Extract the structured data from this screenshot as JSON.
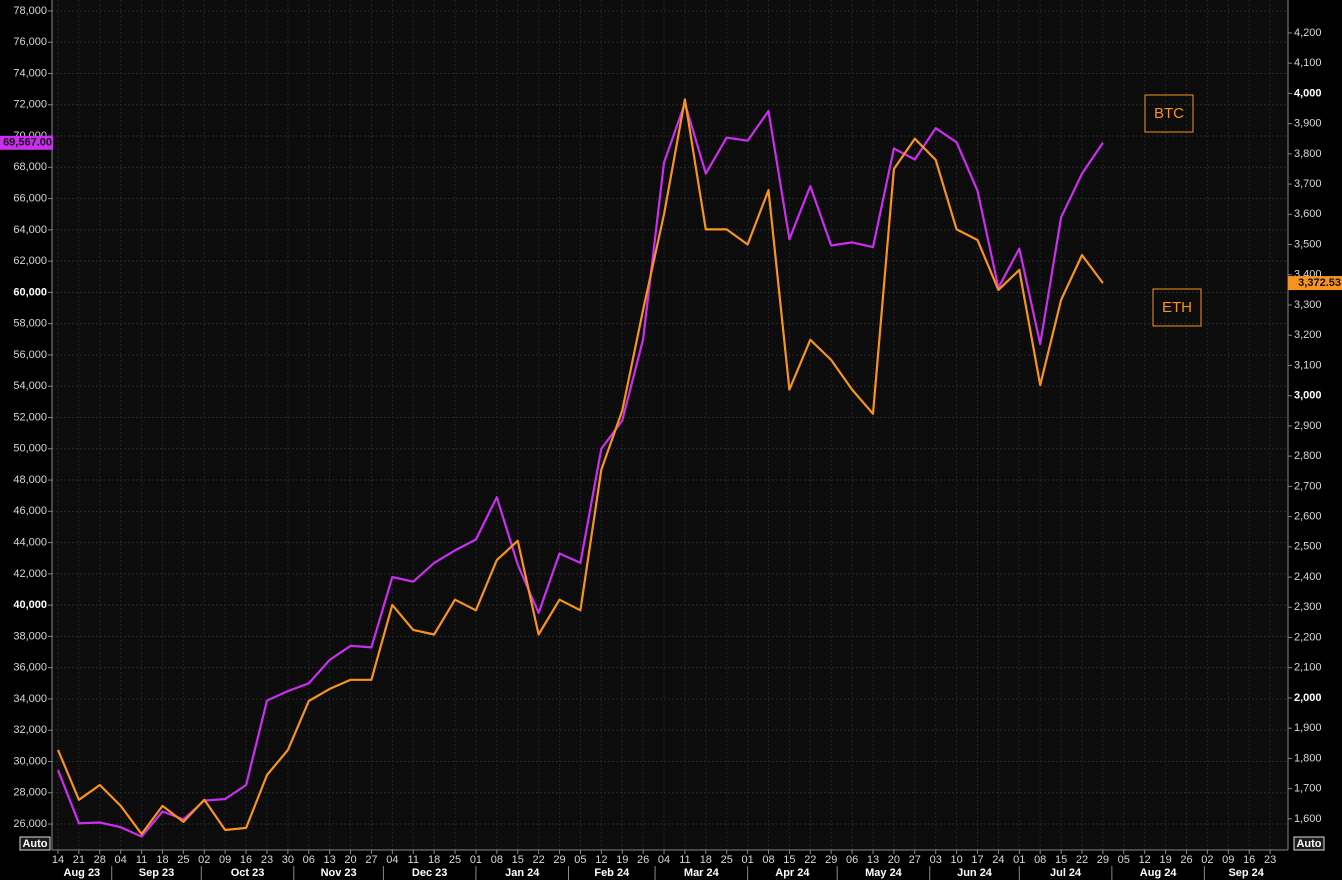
{
  "chart_data": {
    "type": "line",
    "x": [
      "2023-08-14",
      "2023-08-21",
      "2023-08-28",
      "2023-09-04",
      "2023-09-11",
      "2023-09-18",
      "2023-09-25",
      "2023-10-02",
      "2023-10-09",
      "2023-10-16",
      "2023-10-23",
      "2023-10-30",
      "2023-11-06",
      "2023-11-13",
      "2023-11-20",
      "2023-11-27",
      "2023-12-04",
      "2023-12-11",
      "2023-12-18",
      "2023-12-25",
      "2024-01-01",
      "2024-01-08",
      "2024-01-15",
      "2024-01-22",
      "2024-01-29",
      "2024-02-05",
      "2024-02-12",
      "2024-02-19",
      "2024-02-26",
      "2024-03-04",
      "2024-03-11",
      "2024-03-18",
      "2024-03-25",
      "2024-04-01",
      "2024-04-08",
      "2024-04-15",
      "2024-04-22",
      "2024-04-29",
      "2024-05-06",
      "2024-05-13",
      "2024-05-20",
      "2024-05-27",
      "2024-06-03",
      "2024-06-10",
      "2024-06-17",
      "2024-06-24",
      "2024-07-01",
      "2024-07-08",
      "2024-07-15",
      "2024-07-22",
      "2024-07-29"
    ],
    "xlim": [
      "2023-08-12",
      "2024-09-29"
    ],
    "xticks": [
      {
        "value": "2023-08-14",
        "label": "14"
      },
      {
        "value": "2023-08-21",
        "label": "21"
      },
      {
        "value": "2023-08-28",
        "label": "28"
      },
      {
        "value": "2023-09-04",
        "label": "04"
      },
      {
        "value": "2023-09-11",
        "label": "11"
      },
      {
        "value": "2023-09-18",
        "label": "18"
      },
      {
        "value": "2023-09-25",
        "label": "25"
      },
      {
        "value": "2023-10-02",
        "label": "02"
      },
      {
        "value": "2023-10-09",
        "label": "09"
      },
      {
        "value": "2023-10-16",
        "label": "16"
      },
      {
        "value": "2023-10-23",
        "label": "23"
      },
      {
        "value": "2023-10-30",
        "label": "30"
      },
      {
        "value": "2023-11-06",
        "label": "06"
      },
      {
        "value": "2023-11-13",
        "label": "13"
      },
      {
        "value": "2023-11-20",
        "label": "20"
      },
      {
        "value": "2023-11-27",
        "label": "27"
      },
      {
        "value": "2023-12-04",
        "label": "04"
      },
      {
        "value": "2023-12-11",
        "label": "11"
      },
      {
        "value": "2023-12-18",
        "label": "18"
      },
      {
        "value": "2023-12-25",
        "label": "25"
      },
      {
        "value": "2024-01-01",
        "label": "01"
      },
      {
        "value": "2024-01-08",
        "label": "08"
      },
      {
        "value": "2024-01-15",
        "label": "15"
      },
      {
        "value": "2024-01-22",
        "label": "22"
      },
      {
        "value": "2024-01-29",
        "label": "29"
      },
      {
        "value": "2024-02-05",
        "label": "05"
      },
      {
        "value": "2024-02-12",
        "label": "12"
      },
      {
        "value": "2024-02-19",
        "label": "19"
      },
      {
        "value": "2024-02-26",
        "label": "26"
      },
      {
        "value": "2024-03-04",
        "label": "04"
      },
      {
        "value": "2024-03-11",
        "label": "11"
      },
      {
        "value": "2024-03-18",
        "label": "18"
      },
      {
        "value": "2024-03-25",
        "label": "25"
      },
      {
        "value": "2024-04-01",
        "label": "01"
      },
      {
        "value": "2024-04-08",
        "label": "08"
      },
      {
        "value": "2024-04-15",
        "label": "15"
      },
      {
        "value": "2024-04-22",
        "label": "22"
      },
      {
        "value": "2024-04-29",
        "label": "29"
      },
      {
        "value": "2024-05-06",
        "label": "06"
      },
      {
        "value": "2024-05-13",
        "label": "13"
      },
      {
        "value": "2024-05-20",
        "label": "20"
      },
      {
        "value": "2024-05-27",
        "label": "27"
      },
      {
        "value": "2024-06-03",
        "label": "03"
      },
      {
        "value": "2024-06-10",
        "label": "10"
      },
      {
        "value": "2024-06-17",
        "label": "17"
      },
      {
        "value": "2024-06-24",
        "label": "24"
      },
      {
        "value": "2024-07-01",
        "label": "01"
      },
      {
        "value": "2024-07-08",
        "label": "08"
      },
      {
        "value": "2024-07-15",
        "label": "15"
      },
      {
        "value": "2024-07-22",
        "label": "22"
      },
      {
        "value": "2024-07-29",
        "label": "29"
      },
      {
        "value": "2024-08-05",
        "label": "05"
      },
      {
        "value": "2024-08-12",
        "label": "12"
      },
      {
        "value": "2024-08-19",
        "label": "19"
      },
      {
        "value": "2024-08-26",
        "label": "26"
      },
      {
        "value": "2024-09-02",
        "label": "02"
      },
      {
        "value": "2024-09-09",
        "label": "09"
      },
      {
        "value": "2024-09-16",
        "label": "16"
      },
      {
        "value": "2024-09-23",
        "label": "23"
      }
    ],
    "month_labels": [
      {
        "value": "2023-08-01",
        "label": "Aug 23"
      },
      {
        "value": "2023-09-01",
        "label": "Sep 23"
      },
      {
        "value": "2023-10-01",
        "label": "Oct 23"
      },
      {
        "value": "2023-11-01",
        "label": "Nov 23"
      },
      {
        "value": "2023-12-01",
        "label": "Dec 23"
      },
      {
        "value": "2024-01-01",
        "label": "Jan 24"
      },
      {
        "value": "2024-02-01",
        "label": "Feb 24"
      },
      {
        "value": "2024-03-01",
        "label": "Mar 24"
      },
      {
        "value": "2024-04-01",
        "label": "Apr 24"
      },
      {
        "value": "2024-05-01",
        "label": "May 24"
      },
      {
        "value": "2024-06-01",
        "label": "Jun 24"
      },
      {
        "value": "2024-07-01",
        "label": "Jul 24"
      },
      {
        "value": "2024-08-01",
        "label": "Aug 24"
      },
      {
        "value": "2024-09-01",
        "label": "Sep 24"
      }
    ],
    "ylim": [
      24340,
      78700
    ],
    "yticks": [
      {
        "value": 26000,
        "label": "26,000"
      },
      {
        "value": 28000,
        "label": "28,000"
      },
      {
        "value": 30000,
        "label": "30,000"
      },
      {
        "value": 32000,
        "label": "32,000"
      },
      {
        "value": 34000,
        "label": "34,000"
      },
      {
        "value": 36000,
        "label": "36,000"
      },
      {
        "value": 38000,
        "label": "38,000"
      },
      {
        "value": 40000,
        "label": "40,000"
      },
      {
        "value": 42000,
        "label": "42,000"
      },
      {
        "value": 44000,
        "label": "44,000"
      },
      {
        "value": 46000,
        "label": "46,000"
      },
      {
        "value": 48000,
        "label": "48,000"
      },
      {
        "value": 50000,
        "label": "50,000"
      },
      {
        "value": 52000,
        "label": "52,000"
      },
      {
        "value": 54000,
        "label": "54,000"
      },
      {
        "value": 56000,
        "label": "56,000"
      },
      {
        "value": 58000,
        "label": "58,000"
      },
      {
        "value": 60000,
        "label": "60,000"
      },
      {
        "value": 62000,
        "label": "62,000"
      },
      {
        "value": 64000,
        "label": "64,000"
      },
      {
        "value": 66000,
        "label": "66,000"
      },
      {
        "value": 68000,
        "label": "68,000"
      },
      {
        "value": 70000,
        "label": "70,000"
      },
      {
        "value": 72000,
        "label": "72,000"
      },
      {
        "value": 74000,
        "label": "74,000"
      },
      {
        "value": 76000,
        "label": "76,000"
      },
      {
        "value": 78000,
        "label": "78,000"
      }
    ],
    "y2lim": [
      1497,
      4309
    ],
    "y2ticks": [
      {
        "value": 1600,
        "label": "1,600"
      },
      {
        "value": 1700,
        "label": "1,700"
      },
      {
        "value": 1800,
        "label": "1,800"
      },
      {
        "value": 1900,
        "label": "1,900"
      },
      {
        "value": 2000,
        "label": "2,000"
      },
      {
        "value": 2100,
        "label": "2,100"
      },
      {
        "value": 2200,
        "label": "2,200"
      },
      {
        "value": 2300,
        "label": "2,300"
      },
      {
        "value": 2400,
        "label": "2,400"
      },
      {
        "value": 2500,
        "label": "2,500"
      },
      {
        "value": 2600,
        "label": "2,600"
      },
      {
        "value": 2700,
        "label": "2,700"
      },
      {
        "value": 2800,
        "label": "2,800"
      },
      {
        "value": 2900,
        "label": "2,900"
      },
      {
        "value": 3000,
        "label": "3,000"
      },
      {
        "value": 3100,
        "label": "3,100"
      },
      {
        "value": 3200,
        "label": "3,200"
      },
      {
        "value": 3300,
        "label": "3,300"
      },
      {
        "value": 3400,
        "label": "3,400"
      },
      {
        "value": 3500,
        "label": "3,500"
      },
      {
        "value": 3600,
        "label": "3,600"
      },
      {
        "value": 3700,
        "label": "3,700"
      },
      {
        "value": 3800,
        "label": "3,800"
      },
      {
        "value": 3900,
        "label": "3,900"
      },
      {
        "value": 4000,
        "label": "4,000"
      },
      {
        "value": 4100,
        "label": "4,100"
      },
      {
        "value": 4200,
        "label": "4,200"
      }
    ],
    "grid": true,
    "series": [
      {
        "name": "BTC",
        "color": "#cc2ef0",
        "values": [
          29450,
          26050,
          26100,
          25800,
          25200,
          26800,
          26300,
          27500,
          27600,
          28500,
          33900,
          34500,
          35000,
          36500,
          37400,
          37300,
          41800,
          41500,
          42700,
          43500,
          44200,
          46900,
          42600,
          39500,
          43300,
          42700,
          50000,
          51800,
          57000,
          68300,
          72100,
          67600,
          69900,
          69700,
          71600,
          63400,
          66800,
          63000,
          63200,
          62900,
          69200,
          68500,
          70500,
          69600,
          66500,
          60300,
          62800,
          56700,
          64800,
          67600,
          69567
        ],
        "value_labels": [
          null,
          null,
          null,
          null,
          null,
          null,
          null,
          null,
          null,
          null,
          null,
          null,
          null,
          null,
          null,
          null,
          null,
          null,
          null,
          null,
          null,
          null,
          null,
          null,
          null,
          null,
          null,
          null,
          null,
          null,
          null,
          null,
          null,
          null,
          null,
          null,
          null,
          null,
          null,
          null,
          null,
          null,
          null,
          null,
          null,
          null,
          null,
          null,
          null,
          null,
          "69,567.00"
        ]
      },
      {
        "name": "ETH",
        "color": "#f7941d",
        "axis": "y2",
        "values": [
          1828,
          1663,
          1712,
          1643,
          1550,
          1643,
          1590,
          1663,
          1563,
          1570,
          1745,
          1828,
          1990,
          2030,
          2060,
          2060,
          2308,
          2225,
          2210,
          2325,
          2290,
          2456,
          2520,
          2210,
          2325,
          2290,
          2755,
          2950,
          3284,
          3600,
          3980,
          3550,
          3550,
          3500,
          3680,
          3020,
          3185,
          3118,
          3020,
          2940,
          3750,
          3850,
          3780,
          3550,
          3515,
          3350,
          3416,
          3035,
          3317,
          3465,
          3372.53
        ],
        "value_labels": [
          null,
          null,
          null,
          null,
          null,
          null,
          null,
          null,
          null,
          null,
          null,
          null,
          null,
          null,
          null,
          null,
          null,
          null,
          null,
          null,
          null,
          null,
          null,
          null,
          null,
          null,
          null,
          null,
          null,
          null,
          null,
          null,
          null,
          null,
          null,
          null,
          null,
          null,
          null,
          null,
          null,
          null,
          null,
          null,
          null,
          null,
          null,
          null,
          null,
          null,
          "3,372.53"
        ]
      }
    ]
  },
  "controls": [
    "Auto",
    "Auto"
  ]
}
